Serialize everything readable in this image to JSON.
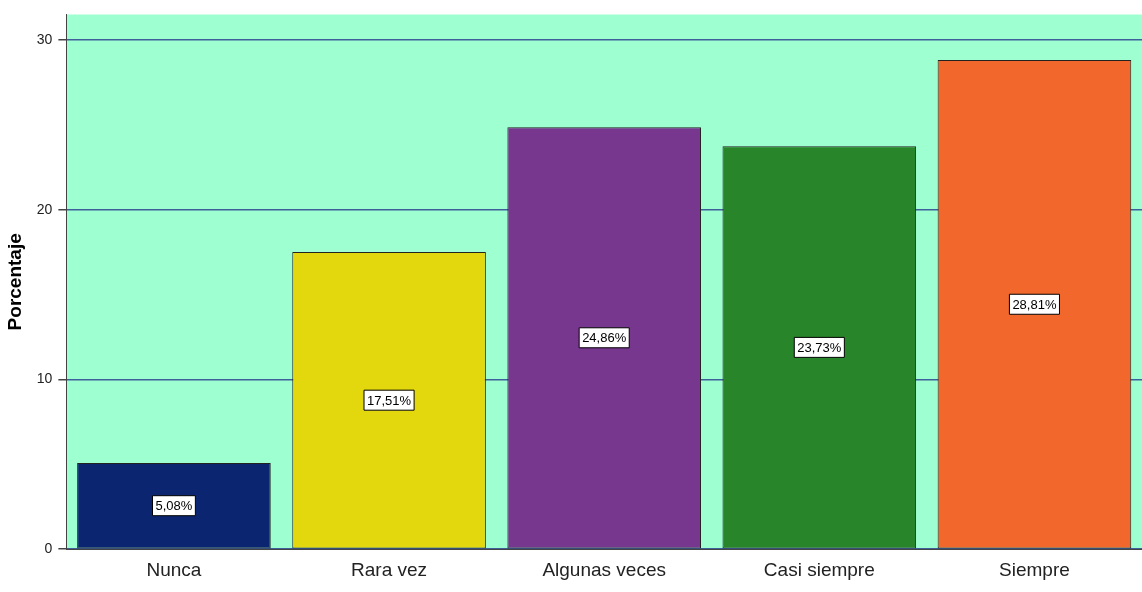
{
  "chart_data": {
    "type": "bar",
    "ylabel": "Porcentaje",
    "categories": [
      "Nunca",
      "Rara vez",
      "Algunas veces",
      "Casi siempre",
      "Siempre"
    ],
    "values": [
      5.08,
      17.51,
      24.86,
      23.73,
      28.81
    ],
    "colors": [
      "#0c2570",
      "#e3d80e",
      "#77378e",
      "#29852a",
      "#f2682c"
    ],
    "value_labels": [
      "5,08%",
      "17,51%",
      "24,86%",
      "23,73%",
      "28,81%"
    ],
    "ylim": [
      0,
      31.5
    ],
    "yticks": [
      0,
      10,
      20,
      30
    ],
    "grid": "y",
    "legend": false
  }
}
